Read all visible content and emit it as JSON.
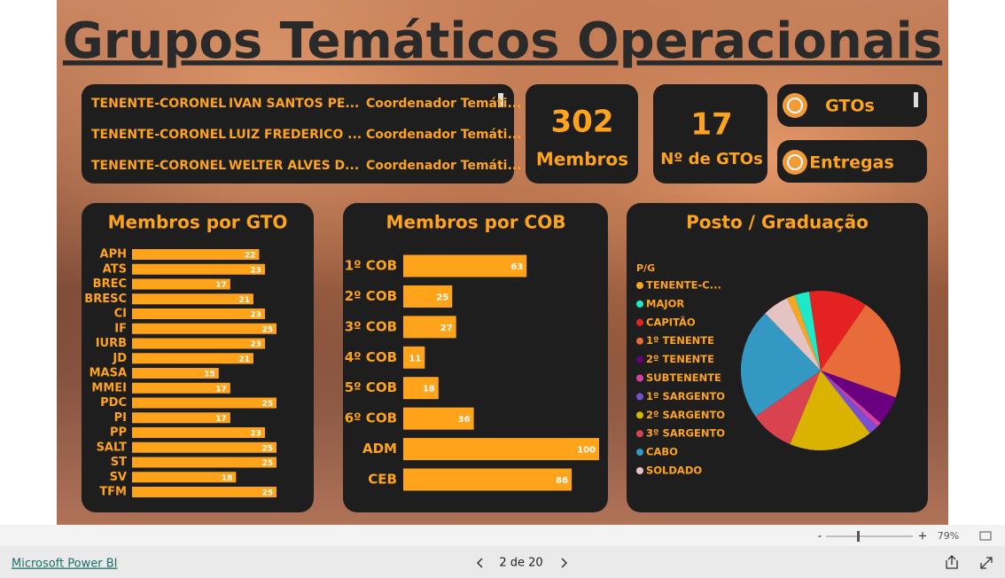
{
  "header": {
    "title": "Grupos Temáticos Operacionais"
  },
  "table": {
    "rows": [
      [
        "TENENTE-CORONEL",
        "IVAN SANTOS PE...",
        "Coordenador Temáti..."
      ],
      [
        "TENENTE-CORONEL",
        "LUIZ FREDERICO ...",
        "Coordenador Temáti..."
      ],
      [
        "TENENTE-CORONEL",
        "WELTER ALVES D...",
        "Coordenador Temáti..."
      ]
    ]
  },
  "cards": [
    {
      "value": "302",
      "label": "Membros"
    },
    {
      "value": "17",
      "label": "Nº de GTOs"
    }
  ],
  "buttons": [
    "GTOs",
    "Entregas"
  ],
  "chart_data": [
    {
      "type": "hbar",
      "title": "Membros por GTO",
      "color": "#ffa31a",
      "categories": [
        "APH",
        "ATS",
        "BREC",
        "BRESC",
        "CI",
        "IF",
        "IURB",
        "JD",
        "MASA",
        "MMEI",
        "PDC",
        "PI",
        "PP",
        "SALT",
        "ST",
        "SV",
        "TFM"
      ],
      "values": [
        22,
        23,
        17,
        21,
        23,
        25,
        23,
        21,
        15,
        17,
        25,
        17,
        23,
        25,
        25,
        18,
        25
      ]
    },
    {
      "type": "hbar",
      "title": "Membros por COB",
      "color": "#ffa31a",
      "categories": [
        "1º COB",
        "2º COB",
        "3º COB",
        "4º COB",
        "5º COB",
        "6º COB",
        "ADM",
        "CEB"
      ],
      "values": [
        63,
        25,
        27,
        11,
        18,
        36,
        100,
        86
      ]
    },
    {
      "type": "pie",
      "title": "Posto / Graduação",
      "legend_title": "P/G",
      "categories": [
        "TENENTE-C...",
        "MAJOR",
        "CAPITÃO",
        "1º TENENTE",
        "2º TENENTE",
        "SUBTENENTE",
        "1º SARGENTO",
        "2º SARGENTO",
        "3º SARGENTO",
        "CABO",
        "SOLDADO"
      ],
      "values": [
        5,
        9,
        36,
        63,
        18,
        3,
        6,
        51,
        27,
        68,
        16
      ],
      "colors": [
        "#f5a623",
        "#1de9c9",
        "#e52222",
        "#e86b3a",
        "#6a0080",
        "#d63fa6",
        "#7b4fd1",
        "#d9b300",
        "#d9434f",
        "#3399c2",
        "#e6c3c3"
      ]
    }
  ],
  "footer": {
    "zoom_minus": "-",
    "zoom_plus": "+",
    "zoom": "79%",
    "brand": "Microsoft Power BI",
    "page": "2 de 20"
  }
}
